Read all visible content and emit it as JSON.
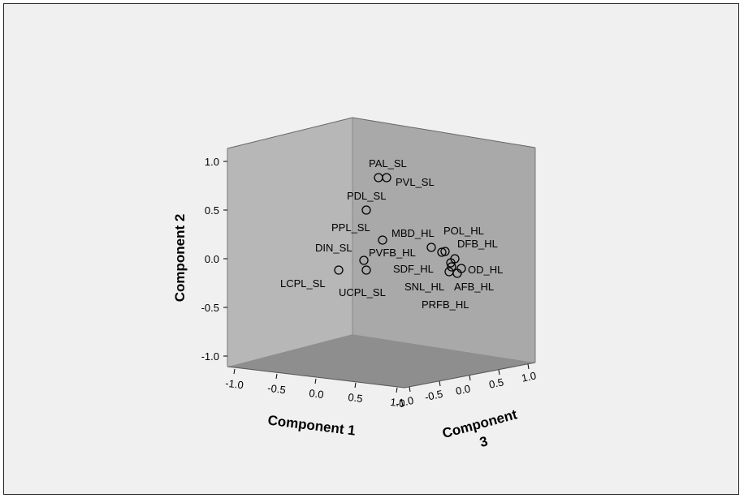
{
  "chart_data": {
    "type": "scatter",
    "projection": "3d",
    "title": "",
    "xlabel": "Component 1",
    "ylabel": "Component 2",
    "zlabel_lines": [
      "Component",
      "3"
    ],
    "xlim": [
      -1.0,
      1.0
    ],
    "ylim": [
      -1.0,
      1.0
    ],
    "zlim": [
      -1.0,
      1.0
    ],
    "x_ticks": [
      "-1.0",
      "-0.5",
      "0.0",
      "0.5",
      "1.0"
    ],
    "y_ticks": [
      "1.0",
      "0.5",
      "0.0",
      "-0.5",
      "-1.0"
    ],
    "z_ticks": [
      "1.0",
      "0.5",
      "0.0",
      "-0.5",
      "-1.0"
    ],
    "marker": "open-circle",
    "colors": {
      "frame_background": "#f0f0f0",
      "back_wall": "#a9a9a9",
      "left_wall": "#b7b7b7",
      "floor": "#8e8e8e",
      "marker_stroke": "#000000"
    },
    "points": [
      {
        "label": "PAL_SL"
      },
      {
        "label": "PVL_SL"
      },
      {
        "label": "PDL_SL"
      },
      {
        "label": "PPL_SL"
      },
      {
        "label": "MBD_HL"
      },
      {
        "label": "POL_HL"
      },
      {
        "label": "DFB_HL"
      },
      {
        "label": "DIN_SL"
      },
      {
        "label": "PVFB_HL"
      },
      {
        "label": "SDF_HL"
      },
      {
        "label": "OD_HL"
      },
      {
        "label": "LCPL_SL"
      },
      {
        "label": "UCPL_SL"
      },
      {
        "label": "SNL_HL"
      },
      {
        "label": "AFB_HL"
      },
      {
        "label": "PRFB_HL"
      }
    ]
  }
}
